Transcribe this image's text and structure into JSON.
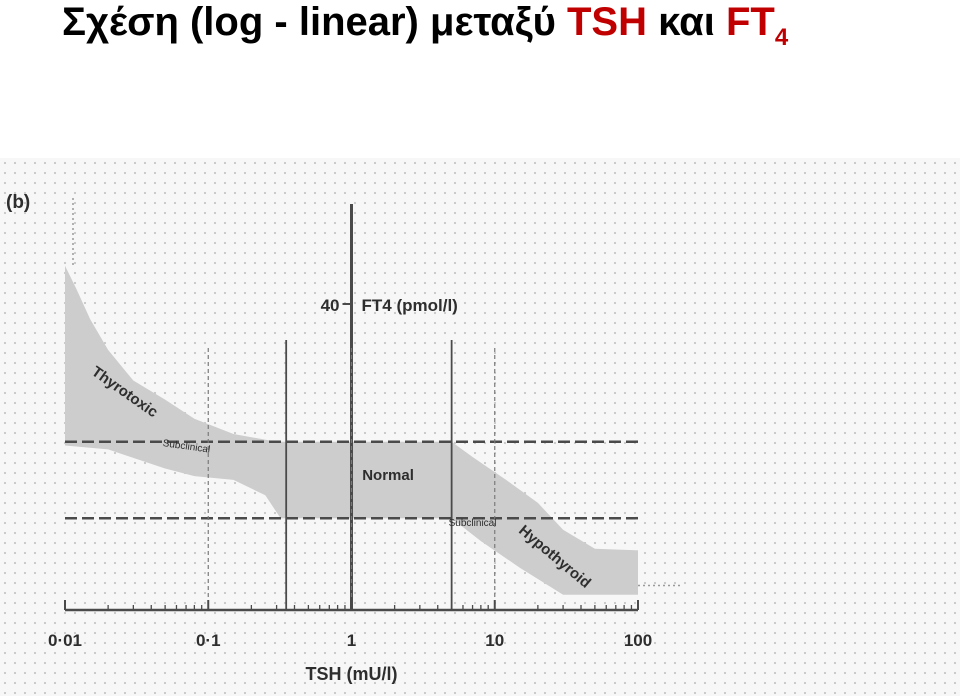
{
  "slide": {
    "title_prefix": "Σχέση (log - linear) μεταξύ",
    "title_tsh": "TSH",
    "title_kai": "και",
    "title_ft": "FT",
    "title_sub": "4",
    "accent_color": "#c00000"
  },
  "chart_data": {
    "type": "area",
    "panel_label": "(b)",
    "xlabel": "TSH (mU/l)",
    "ylabel": "FT4 (pmol/l)",
    "x_scale": "log",
    "xlim": [
      0.01,
      100
    ],
    "x_ticks": [
      0.01,
      0.1,
      1,
      10,
      100
    ],
    "x_tick_labels": [
      "0·01",
      "0·1",
      "1",
      "10",
      "100"
    ],
    "y_tick_value": 40,
    "y_tick_label": "40",
    "normal_range": {
      "tsh": [
        0.35,
        5.0
      ],
      "ft4": [
        12,
        22
      ]
    },
    "band": {
      "upper": [
        [
          0.01,
          45
        ],
        [
          0.012,
          42
        ],
        [
          0.015,
          38
        ],
        [
          0.02,
          34
        ],
        [
          0.03,
          30
        ],
        [
          0.05,
          27.5
        ],
        [
          0.08,
          25
        ],
        [
          0.15,
          23
        ],
        [
          0.3,
          22
        ],
        [
          5,
          22
        ],
        [
          7,
          20
        ],
        [
          12,
          17
        ],
        [
          20,
          14
        ],
        [
          30,
          10.5
        ],
        [
          50,
          8
        ],
        [
          100,
          7.8
        ]
      ],
      "lower": [
        [
          0.01,
          21.5
        ],
        [
          0.02,
          21
        ],
        [
          0.05,
          18.5
        ],
        [
          0.08,
          17.5
        ],
        [
          0.15,
          17
        ],
        [
          0.25,
          15
        ],
        [
          0.32,
          12
        ],
        [
          5,
          12
        ],
        [
          8,
          9
        ],
        [
          15,
          5.5
        ],
        [
          30,
          2
        ],
        [
          100,
          2
        ]
      ]
    },
    "annotations": [
      {
        "text": "Thyrotoxic",
        "x": 0.025,
        "y": 28,
        "rotate": 35,
        "size": "large"
      },
      {
        "text": "Subclinical",
        "x": 0.07,
        "y": 21,
        "rotate": 8,
        "size": "small"
      },
      {
        "text": "Normal",
        "x": 1.8,
        "y": 17,
        "rotate": 0,
        "size": "large"
      },
      {
        "text": "Subclinical",
        "x": 7,
        "y": 11,
        "rotate": 0,
        "size": "small"
      },
      {
        "text": "Hypothyroid",
        "x": 25,
        "y": 6.5,
        "rotate": 40,
        "size": "large"
      }
    ],
    "colors": {
      "band": "#cdcdcd",
      "lines": "#4a4a4a",
      "text": "#2e2e2e"
    }
  }
}
